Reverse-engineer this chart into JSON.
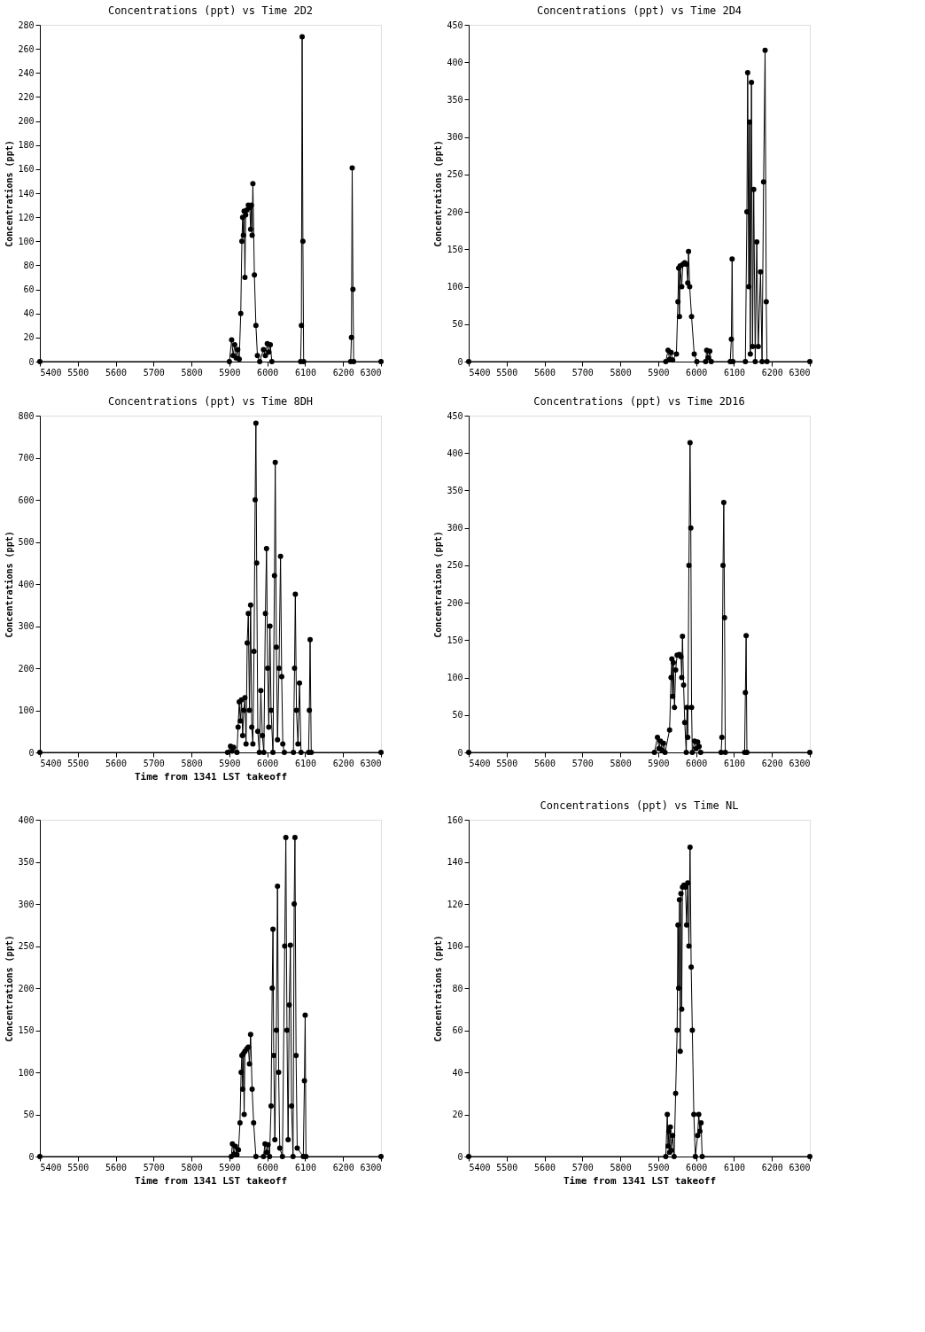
{
  "chart_data": [
    {
      "type": "line",
      "title": "Concentrations (ppt) vs Time 2D2",
      "ylabel": "Concentrations (ppt)",
      "marker": "circle",
      "line_style": "solid",
      "grid": false,
      "xlim": [
        5400,
        6300
      ],
      "xticks": [
        5400,
        5500,
        5600,
        5700,
        5800,
        5900,
        6000,
        6100,
        6200,
        6300
      ],
      "ylim": [
        0,
        280
      ],
      "yticks": [
        0,
        20,
        40,
        60,
        80,
        100,
        120,
        140,
        160,
        180,
        200,
        220,
        240,
        260,
        280
      ],
      "series": [
        {
          "color": "#000000",
          "x": [
            5400,
            5900,
            5906,
            5910,
            5914,
            5918,
            5922,
            5926,
            5930,
            5933,
            5935,
            5937,
            5939,
            5941,
            5943,
            5946,
            5950,
            5954,
            5956,
            5958,
            5960,
            5962,
            5966,
            5970,
            5974,
            5980,
            5990,
            5995,
            6000,
            6004,
            6008,
            6012,
            6088,
            6090,
            6092,
            6094,
            6096,
            6220,
            6222,
            6224,
            6226,
            6228,
            6300
          ],
          "values": [
            0,
            0,
            18,
            5,
            14,
            3,
            10,
            2,
            40,
            100,
            120,
            105,
            125,
            70,
            122,
            126,
            130,
            128,
            110,
            130,
            105,
            148,
            72,
            30,
            5,
            0,
            10,
            5,
            15,
            8,
            14,
            0,
            0,
            30,
            270,
            100,
            0,
            0,
            20,
            161,
            60,
            0,
            0
          ]
        }
      ]
    },
    {
      "type": "line",
      "title": "Concentrations (ppt) vs Time 2D4",
      "ylabel": "Concentrations (ppt)",
      "marker": "circle",
      "line_style": "solid",
      "grid": false,
      "xlim": [
        5400,
        6300
      ],
      "xticks": [
        5400,
        5500,
        5600,
        5700,
        5800,
        5900,
        6000,
        6100,
        6200,
        6300
      ],
      "ylim": [
        0,
        450
      ],
      "yticks": [
        0,
        50,
        100,
        150,
        200,
        250,
        300,
        350,
        400,
        450
      ],
      "series": [
        {
          "color": "#000000",
          "x": [
            5400,
            5920,
            5926,
            5930,
            5934,
            5938,
            5948,
            5952,
            5954,
            5956,
            5958,
            5962,
            5965,
            5970,
            5975,
            5978,
            5980,
            5983,
            5988,
            5995,
            6002,
            6025,
            6028,
            6032,
            6036,
            6040,
            6090,
            6093,
            6095,
            6097,
            6130,
            6134,
            6136,
            6139,
            6141,
            6143,
            6146,
            6149,
            6152,
            6156,
            6160,
            6164,
            6170,
            6174,
            6178,
            6182,
            6185,
            6187,
            6300
          ],
          "values": [
            0,
            0,
            15,
            3,
            12,
            2,
            10,
            80,
            125,
            60,
            128,
            100,
            130,
            132,
            130,
            105,
            147,
            100,
            60,
            10,
            0,
            0,
            15,
            5,
            14,
            0,
            0,
            30,
            137,
            0,
            0,
            200,
            386,
            100,
            320,
            10,
            373,
            20,
            230,
            0,
            160,
            20,
            120,
            0,
            240,
            416,
            80,
            0,
            0
          ]
        }
      ]
    },
    {
      "type": "line",
      "title": "Concentrations (ppt) vs Time 8DH",
      "xlabel": "Time from 1341 LST takeoff",
      "ylabel": "Concentrations (ppt)",
      "marker": "circle",
      "line_style": "solid",
      "grid": false,
      "xlim": [
        5400,
        6300
      ],
      "xticks": [
        5400,
        5500,
        5600,
        5700,
        5800,
        5900,
        6000,
        6100,
        6200,
        6300
      ],
      "ylim": [
        0,
        800
      ],
      "yticks": [
        0,
        100,
        200,
        300,
        400,
        500,
        600,
        700,
        800
      ],
      "series": [
        {
          "color": "#000000",
          "x": [
            5400,
            5895,
            5903,
            5907,
            5911,
            5920,
            5923,
            5926,
            5929,
            5932,
            5935,
            5938,
            5941,
            5944,
            5947,
            5950,
            5953,
            5956,
            5959,
            5962,
            5965,
            5968,
            5970,
            5972,
            5975,
            5979,
            5983,
            5987,
            5991,
            5995,
            5998,
            6001,
            6004,
            6007,
            6010,
            6015,
            6019,
            6021,
            6024,
            6027,
            6031,
            6035,
            6038,
            6041,
            6045,
            6069,
            6072,
            6074,
            6077,
            6081,
            6085,
            6089,
            6109,
            6111,
            6113,
            6116,
            6300
          ],
          "values": [
            0,
            0,
            15,
            3,
            12,
            0,
            60,
            120,
            75,
            125,
            40,
            100,
            130,
            20,
            260,
            330,
            100,
            350,
            60,
            20,
            240,
            600,
            782,
            450,
            50,
            0,
            147,
            40,
            0,
            330,
            484,
            200,
            60,
            300,
            100,
            0,
            420,
            689,
            250,
            30,
            200,
            466,
            180,
            20,
            0,
            0,
            200,
            376,
            100,
            20,
            165,
            0,
            0,
            100,
            268,
            0,
            0
          ]
        }
      ]
    },
    {
      "type": "line",
      "title": "Concentrations (ppt) vs Time 2D16",
      "ylabel": "Concentrations (ppt)",
      "marker": "circle",
      "line_style": "solid",
      "grid": false,
      "xlim": [
        5400,
        6300
      ],
      "xticks": [
        5400,
        5500,
        5600,
        5700,
        5800,
        5900,
        6000,
        6100,
        6200,
        6300
      ],
      "ylim": [
        0,
        450
      ],
      "yticks": [
        0,
        50,
        100,
        150,
        200,
        250,
        300,
        350,
        400,
        450
      ],
      "series": [
        {
          "color": "#000000",
          "x": [
            5400,
            5890,
            5898,
            5902,
            5906,
            5910,
            5914,
            5918,
            5930,
            5934,
            5936,
            5938,
            5940,
            5943,
            5946,
            5950,
            5956,
            5960,
            5962,
            5964,
            5967,
            5970,
            5974,
            5976,
            5978,
            5981,
            5984,
            5986,
            5988,
            5990,
            5996,
            6000,
            6004,
            6008,
            6012,
            6066,
            6068,
            6071,
            6073,
            6075,
            6077,
            6128,
            6130,
            6132,
            6134,
            6300
          ],
          "values": [
            0,
            0,
            20,
            5,
            15,
            3,
            12,
            0,
            30,
            100,
            125,
            75,
            120,
            60,
            110,
            130,
            131,
            128,
            100,
            155,
            90,
            40,
            0,
            60,
            20,
            250,
            414,
            300,
            60,
            0,
            15,
            5,
            14,
            8,
            0,
            0,
            20,
            250,
            334,
            180,
            0,
            0,
            80,
            156,
            0,
            0
          ]
        }
      ]
    },
    {
      "type": "line",
      "xlabel": "Time from 1341 LST takeoff",
      "ylabel": "Concentrations (ppt)",
      "marker": "circle",
      "line_style": "solid",
      "grid": false,
      "xlim": [
        5400,
        6300
      ],
      "xticks": [
        5400,
        5500,
        5600,
        5700,
        5800,
        5900,
        6000,
        6100,
        6200,
        6300
      ],
      "ylim": [
        0,
        400
      ],
      "yticks": [
        0,
        50,
        100,
        150,
        200,
        250,
        300,
        350,
        400
      ],
      "series": [
        {
          "color": "#000000",
          "x": [
            5400,
            5905,
            5908,
            5912,
            5916,
            5920,
            5924,
            5928,
            5931,
            5933,
            5935,
            5937,
            5939,
            5941,
            5946,
            5950,
            5953,
            5956,
            5960,
            5964,
            5970,
            5990,
            5994,
            5998,
            6002,
            6006,
            6010,
            6013,
            6015,
            6017,
            6020,
            6024,
            6027,
            6030,
            6033,
            6040,
            6046,
            6049,
            6052,
            6055,
            6058,
            6061,
            6064,
            6068,
            6071,
            6073,
            6076,
            6079,
            6095,
            6098,
            6100,
            6102,
            6300
          ],
          "values": [
            0,
            0,
            15,
            3,
            12,
            2,
            8,
            40,
            100,
            120,
            80,
            122,
            50,
            125,
            128,
            130,
            110,
            145,
            80,
            40,
            0,
            0,
            15,
            5,
            14,
            0,
            60,
            200,
            270,
            120,
            20,
            150,
            321,
            100,
            10,
            0,
            250,
            379,
            150,
            20,
            180,
            251,
            60,
            0,
            300,
            379,
            120,
            10,
            0,
            90,
            168,
            0,
            0
          ]
        }
      ]
    },
    {
      "type": "line",
      "title": "Concentrations (ppt) vs Time NL",
      "xlabel": "Time from 1341 LST takeoff",
      "ylabel": "Concentrations (ppt)",
      "marker": "circle",
      "line_style": "solid",
      "grid": false,
      "xlim": [
        5400,
        6300
      ],
      "xticks": [
        5400,
        5500,
        5600,
        5700,
        5800,
        5900,
        6000,
        6100,
        6200,
        6300
      ],
      "ylim": [
        0,
        160
      ],
      "yticks": [
        0,
        20,
        40,
        60,
        80,
        100,
        120,
        140,
        160
      ],
      "series": [
        {
          "color": "#000000",
          "x": [
            5400,
            5920,
            5924,
            5926,
            5928,
            5930,
            5932,
            5934,
            5938,
            5942,
            5946,
            5950,
            5952,
            5954,
            5956,
            5958,
            5960,
            5962,
            5964,
            5968,
            5972,
            5975,
            5978,
            5981,
            5984,
            5987,
            5990,
            5994,
            5998,
            6004,
            6007,
            6010,
            6013,
            6016,
            6300
          ],
          "values": [
            0,
            0,
            20,
            5,
            12,
            2,
            14,
            3,
            10,
            0,
            30,
            60,
            110,
            80,
            122,
            50,
            125,
            70,
            128,
            129,
            128,
            110,
            130,
            100,
            147,
            90,
            60,
            20,
            0,
            10,
            20,
            12,
            16,
            0,
            0
          ]
        }
      ]
    }
  ]
}
